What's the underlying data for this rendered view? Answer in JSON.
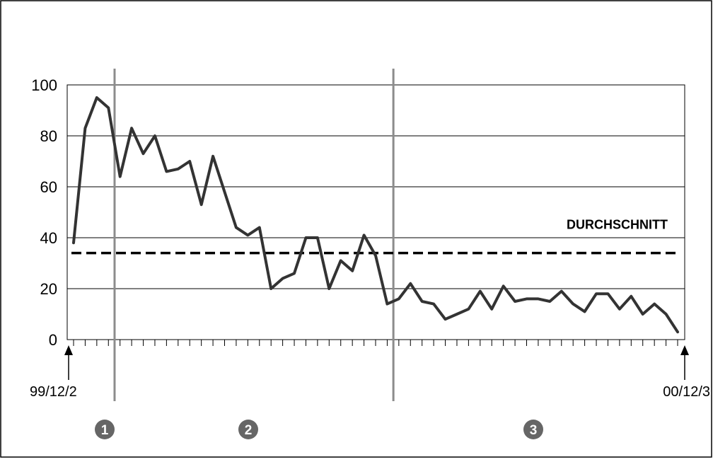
{
  "chart_data": {
    "type": "line",
    "ylim": [
      0,
      100
    ],
    "y_ticks": [
      "0",
      "20",
      "40",
      "60",
      "80",
      "100"
    ],
    "grid": true,
    "x_start_label": "99/12/2",
    "x_end_label": "00/12/3",
    "series": [
      {
        "values": [
          38,
          83,
          95,
          91,
          64,
          83,
          73,
          80,
          66,
          67,
          70,
          53,
          72,
          58,
          44,
          41,
          44,
          20,
          24,
          26,
          40,
          40,
          20,
          31,
          27,
          41,
          33,
          14,
          16,
          22,
          15,
          14,
          8,
          10,
          12,
          19,
          12,
          21,
          15,
          16,
          16,
          15,
          19,
          14,
          11,
          18,
          18,
          12,
          17,
          10,
          14,
          10,
          3
        ],
        "color": "#333333"
      }
    ],
    "reference_line": {
      "label": "DURCHSCHNITT",
      "value": 34,
      "style": "dashed",
      "color": "#000000"
    },
    "phase_dividers": [
      4,
      28
    ],
    "phases": [
      {
        "label": "1"
      },
      {
        "label": "2"
      },
      {
        "label": "3"
      }
    ],
    "colors": {
      "line": "#333333",
      "divider": "#8c8c8c",
      "marker": "#666666",
      "grid": "#000000"
    }
  }
}
